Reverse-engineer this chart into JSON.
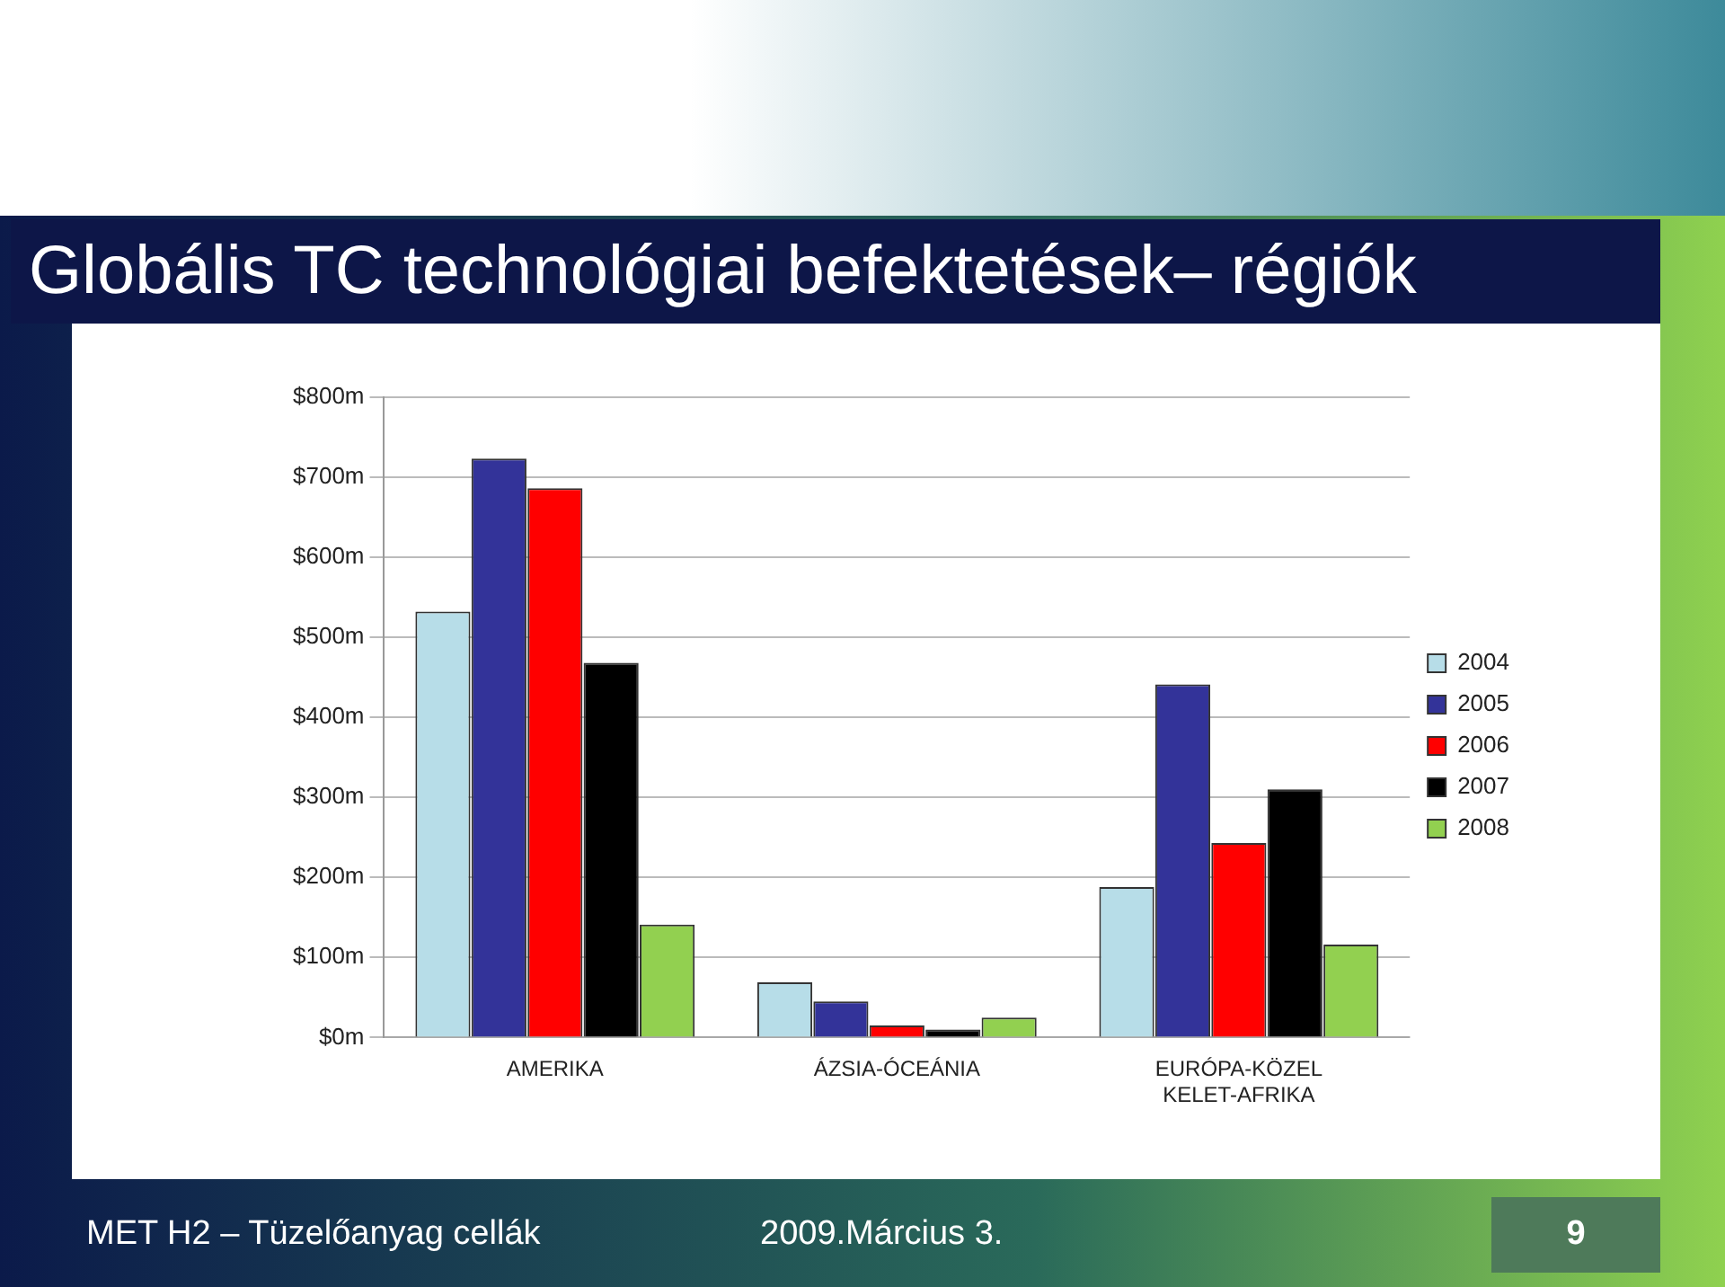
{
  "chart_data": {
    "type": "bar",
    "title": "Globális TC technológiai befektetések– régiók",
    "categories": [
      "AMERIKA",
      "ÁZSIA-ÓCEÁNIA",
      "EURÓPA-KÖZEL KELET-AFRIKA"
    ],
    "series": [
      {
        "name": "2004",
        "color": "#b7dde8",
        "values": [
          532,
          69,
          188
        ]
      },
      {
        "name": "2005",
        "color": "#333399",
        "values": [
          723,
          45,
          441
        ]
      },
      {
        "name": "2006",
        "color": "#ff0000",
        "values": [
          686,
          15,
          243
        ]
      },
      {
        "name": "2007",
        "color": "#000000",
        "values": [
          468,
          10,
          310
        ]
      },
      {
        "name": "2008",
        "color": "#92d050",
        "values": [
          141,
          25,
          116
        ]
      }
    ],
    "ylim": [
      0,
      800
    ],
    "yticks": [
      {
        "value": 0,
        "label": "$0m"
      },
      {
        "value": 100,
        "label": "$100m"
      },
      {
        "value": 200,
        "label": "$200m"
      },
      {
        "value": 300,
        "label": "$300m"
      },
      {
        "value": 400,
        "label": "$400m"
      },
      {
        "value": 500,
        "label": "$500m"
      },
      {
        "value": 600,
        "label": "$600m"
      },
      {
        "value": 700,
        "label": "$700m"
      },
      {
        "value": 800,
        "label": "$800m"
      }
    ],
    "grid": "y",
    "legend": "right",
    "annotations": [
      "MET H2 – Tüzelőanyag cellák",
      "2009.Március 3.",
      "9"
    ]
  }
}
